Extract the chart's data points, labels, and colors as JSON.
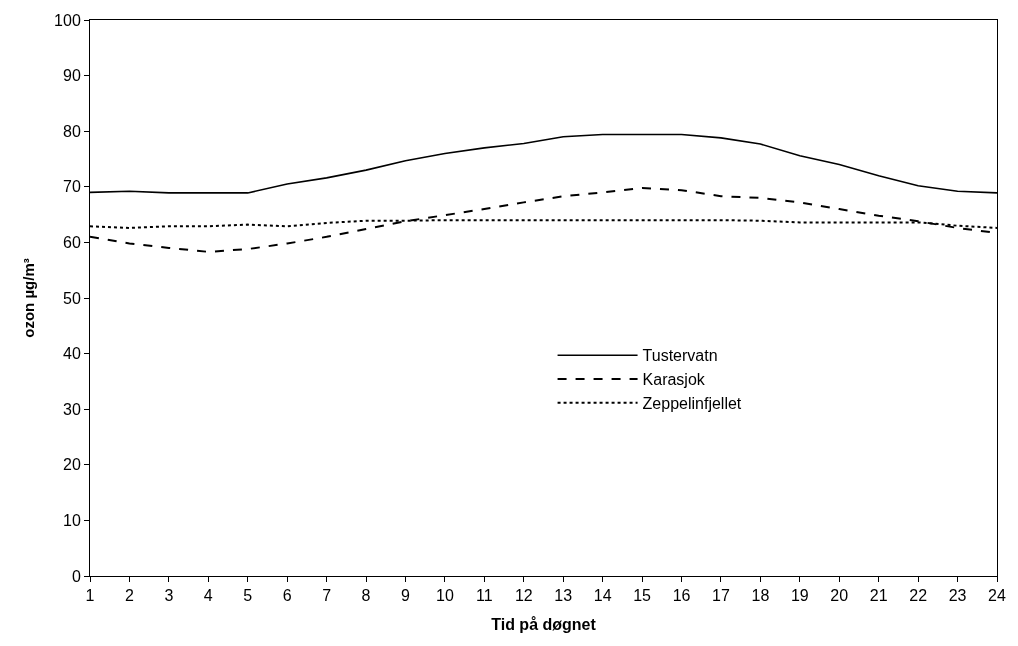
{
  "chart_data": {
    "type": "line",
    "xlabel": "Tid på døgnet",
    "ylabel": "ozon µg/m³",
    "x": [
      1,
      2,
      3,
      4,
      5,
      6,
      7,
      8,
      9,
      10,
      11,
      12,
      13,
      14,
      15,
      16,
      17,
      18,
      19,
      20,
      21,
      22,
      23,
      24
    ],
    "xlim": [
      1,
      24
    ],
    "xticks": [
      1,
      2,
      3,
      4,
      5,
      6,
      7,
      8,
      9,
      10,
      11,
      12,
      13,
      14,
      15,
      16,
      17,
      18,
      19,
      20,
      21,
      22,
      23,
      24
    ],
    "ylim": [
      0,
      100
    ],
    "yticks": [
      0,
      10,
      20,
      30,
      40,
      50,
      60,
      70,
      80,
      90,
      100
    ],
    "legend": "center",
    "marker": "none",
    "series": [
      {
        "name": "Tustervatn",
        "color": "#000000",
        "line_style": "solid",
        "values": [
          69,
          69.2,
          68.9,
          68.9,
          68.9,
          70.5,
          71.6,
          73,
          74.7,
          76,
          77,
          77.8,
          79,
          79.4,
          79.4,
          79.4,
          78.8,
          77.7,
          75.6,
          74,
          72,
          70.2,
          69.2,
          68.9
        ]
      },
      {
        "name": "Karasjok",
        "color": "#000000",
        "line_style": "dashed",
        "values": [
          61,
          59.8,
          59,
          58.3,
          58.8,
          59.8,
          61,
          62.4,
          63.8,
          64.9,
          66,
          67.2,
          68.3,
          69,
          69.8,
          69.4,
          68.3,
          68,
          67.2,
          66,
          64.8,
          63.8,
          62.6,
          61.7
        ]
      },
      {
        "name": "Zeppelinfjellet",
        "color": "#000000",
        "line_style": "dotted",
        "values": [
          62.9,
          62.6,
          62.9,
          62.9,
          63.2,
          62.9,
          63.5,
          63.9,
          63.9,
          64,
          64,
          64,
          64,
          64,
          64,
          64,
          64,
          63.9,
          63.6,
          63.6,
          63.6,
          63.6,
          63,
          62.6
        ]
      }
    ]
  }
}
